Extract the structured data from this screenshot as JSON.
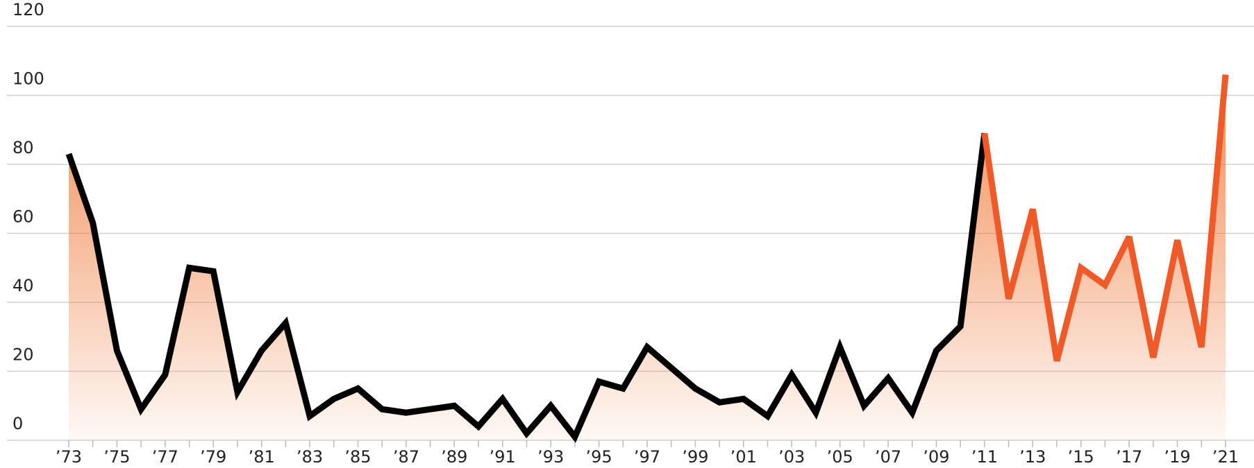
{
  "chart_data": {
    "type": "line",
    "categories": [
      "’73",
      null,
      "’75",
      null,
      "’77",
      null,
      "’79",
      null,
      "’81",
      null,
      "’83",
      null,
      "’85",
      null,
      "’87",
      null,
      "’89",
      null,
      "’91",
      null,
      "’93",
      null,
      "’95",
      null,
      "’97",
      null,
      "’99",
      null,
      "’01",
      null,
      "’03",
      null,
      "’05",
      null,
      "’07",
      null,
      "’09",
      null,
      "’11",
      null,
      "’13",
      null,
      "’15",
      null,
      "’17",
      null,
      "’19",
      null,
      "’21"
    ],
    "series": [
      {
        "color": "#000000",
        "values": [
          83,
          63,
          26,
          9,
          19,
          50,
          49,
          14,
          26,
          34,
          7,
          12,
          15,
          9,
          8,
          9,
          10,
          4,
          12,
          2,
          10,
          1,
          17,
          15,
          27,
          21,
          15,
          11,
          12,
          7,
          19,
          8,
          27,
          10,
          18,
          8,
          26,
          33,
          89,
          null,
          null,
          null,
          null,
          null,
          null,
          null,
          null,
          null,
          null
        ]
      },
      {
        "color": "#f05a28",
        "values": [
          null,
          null,
          null,
          null,
          null,
          null,
          null,
          null,
          null,
          null,
          null,
          null,
          null,
          null,
          null,
          null,
          null,
          null,
          null,
          null,
          null,
          null,
          null,
          null,
          null,
          null,
          null,
          null,
          null,
          null,
          null,
          null,
          null,
          null,
          null,
          null,
          null,
          null,
          89,
          41,
          67,
          23,
          50,
          45,
          59,
          24,
          58,
          27,
          106
        ]
      }
    ],
    "area_color": "#f07a3a",
    "ylim": [
      0,
      120
    ],
    "yticks": [
      0,
      20,
      40,
      60,
      80,
      100,
      120
    ],
    "grid": true
  }
}
